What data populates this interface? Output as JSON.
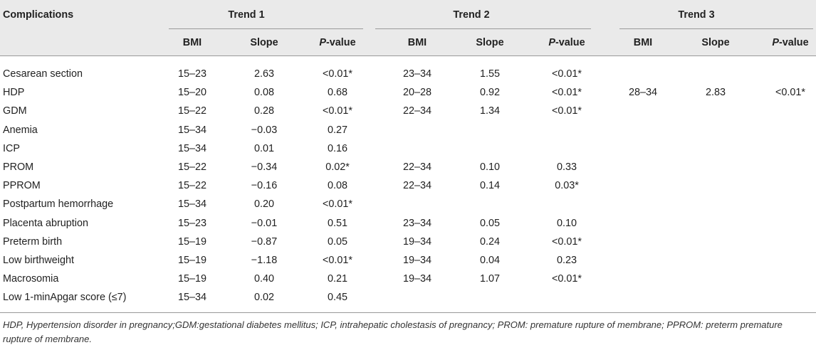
{
  "table": {
    "complications_header": "Complications",
    "trends": [
      "Trend 1",
      "Trend 2",
      "Trend 3"
    ],
    "subheaders": {
      "bmi": "BMI",
      "slope": "Slope",
      "p_italic": "P",
      "p_rest": "-value"
    },
    "rows": [
      {
        "name": "Cesarean section",
        "t1": [
          "15–23",
          "2.63",
          "<0.01*"
        ],
        "t2": [
          "23–34",
          "1.55",
          "<0.01*"
        ],
        "t3": [
          "",
          "",
          ""
        ]
      },
      {
        "name": "HDP",
        "t1": [
          "15–20",
          "0.08",
          "0.68"
        ],
        "t2": [
          "20–28",
          "0.92",
          "<0.01*"
        ],
        "t3": [
          "28–34",
          "2.83",
          "<0.01*"
        ]
      },
      {
        "name": "GDM",
        "t1": [
          "15–22",
          "0.28",
          "<0.01*"
        ],
        "t2": [
          "22–34",
          "1.34",
          "<0.01*"
        ],
        "t3": [
          "",
          "",
          ""
        ]
      },
      {
        "name": "Anemia",
        "t1": [
          "15–34",
          "−0.03",
          "0.27"
        ],
        "t2": [
          "",
          "",
          ""
        ],
        "t3": [
          "",
          "",
          ""
        ]
      },
      {
        "name": "ICP",
        "t1": [
          "15–34",
          "0.01",
          "0.16"
        ],
        "t2": [
          "",
          "",
          ""
        ],
        "t3": [
          "",
          "",
          ""
        ]
      },
      {
        "name": "PROM",
        "t1": [
          "15–22",
          "−0.34",
          "0.02*"
        ],
        "t2": [
          "22–34",
          "0.10",
          "0.33"
        ],
        "t3": [
          "",
          "",
          ""
        ]
      },
      {
        "name": "PPROM",
        "t1": [
          "15–22",
          "−0.16",
          "0.08"
        ],
        "t2": [
          "22–34",
          "0.14",
          "0.03*"
        ],
        "t3": [
          "",
          "",
          ""
        ]
      },
      {
        "name": "Postpartum hemorrhage",
        "t1": [
          "15–34",
          "0.20",
          "<0.01*"
        ],
        "t2": [
          "",
          "",
          ""
        ],
        "t3": [
          "",
          "",
          ""
        ]
      },
      {
        "name": "Placenta abruption",
        "t1": [
          "15–23",
          "−0.01",
          "0.51"
        ],
        "t2": [
          "23–34",
          "0.05",
          "0.10"
        ],
        "t3": [
          "",
          "",
          ""
        ]
      },
      {
        "name": "Preterm birth",
        "t1": [
          "15–19",
          "−0.87",
          "0.05"
        ],
        "t2": [
          "19–34",
          "0.24",
          "<0.01*"
        ],
        "t3": [
          "",
          "",
          ""
        ]
      },
      {
        "name": "Low birthweight",
        "t1": [
          "15–19",
          "−1.18",
          "<0.01*"
        ],
        "t2": [
          "19–34",
          "0.04",
          "0.23"
        ],
        "t3": [
          "",
          "",
          ""
        ]
      },
      {
        "name": "Macrosomia",
        "t1": [
          "15–19",
          "0.40",
          "0.21"
        ],
        "t2": [
          "19–34",
          "1.07",
          "<0.01*"
        ],
        "t3": [
          "",
          "",
          ""
        ]
      },
      {
        "name": "Low 1-minApgar score (≤7)",
        "t1": [
          "15–34",
          "0.02",
          "0.45"
        ],
        "t2": [
          "",
          "",
          ""
        ],
        "t3": [
          "",
          "",
          ""
        ]
      }
    ],
    "footnote": "HDP, Hypertension disorder in pregnancy;GDM:gestational diabetes mellitus; ICP, intrahepatic cholestasis of pregnancy; PROM: premature rupture of membrane; PPROM: preterm premature rupture of membrane."
  }
}
